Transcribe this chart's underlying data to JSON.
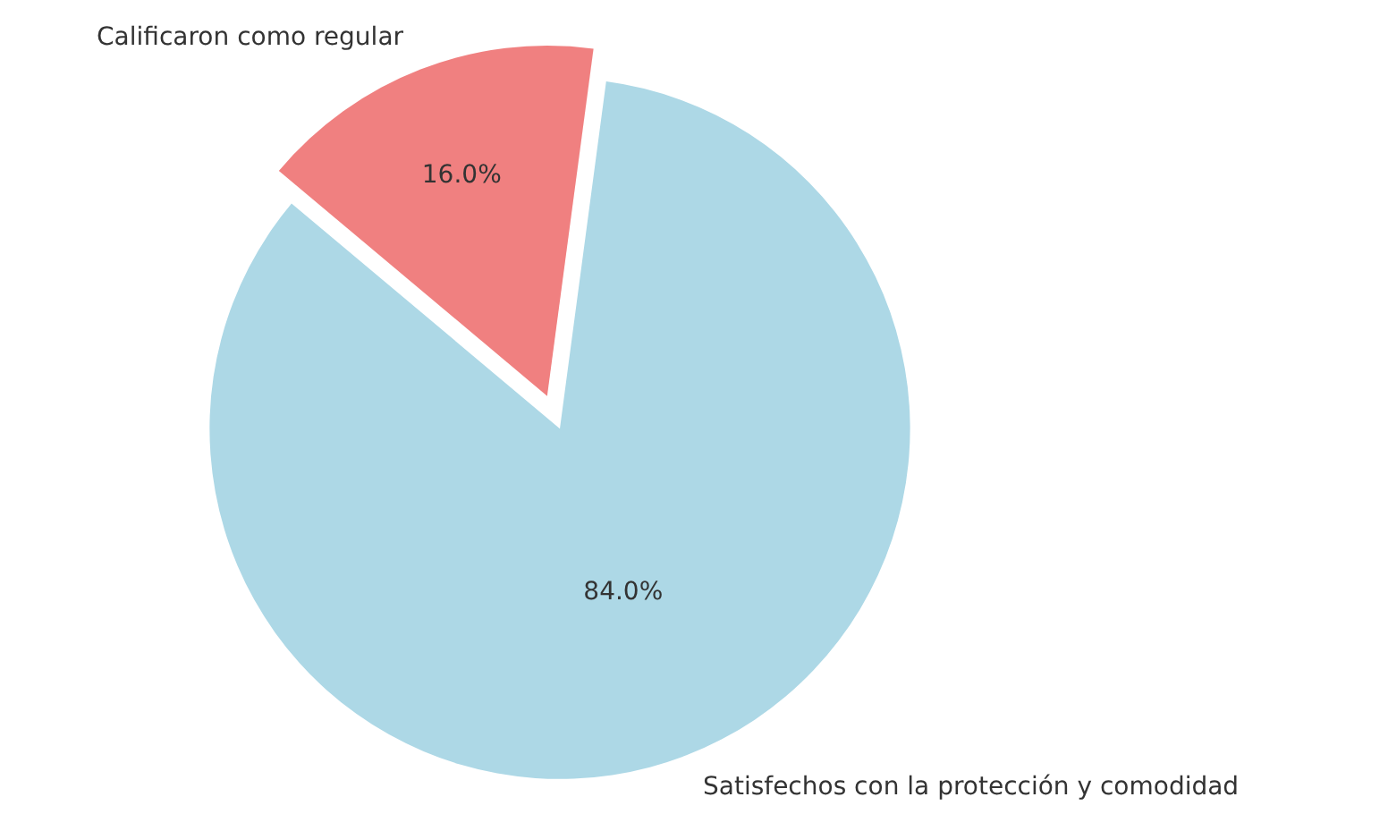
{
  "chart_data": {
    "type": "pie",
    "categories": [
      "Satisfechos con la protección y comodidad",
      "Calificaron como regular"
    ],
    "values": [
      84,
      16
    ],
    "colors": [
      "#add8e6",
      "#f08080"
    ],
    "value_labels": [
      "84.0%",
      "16.0%"
    ],
    "legend": false
  }
}
